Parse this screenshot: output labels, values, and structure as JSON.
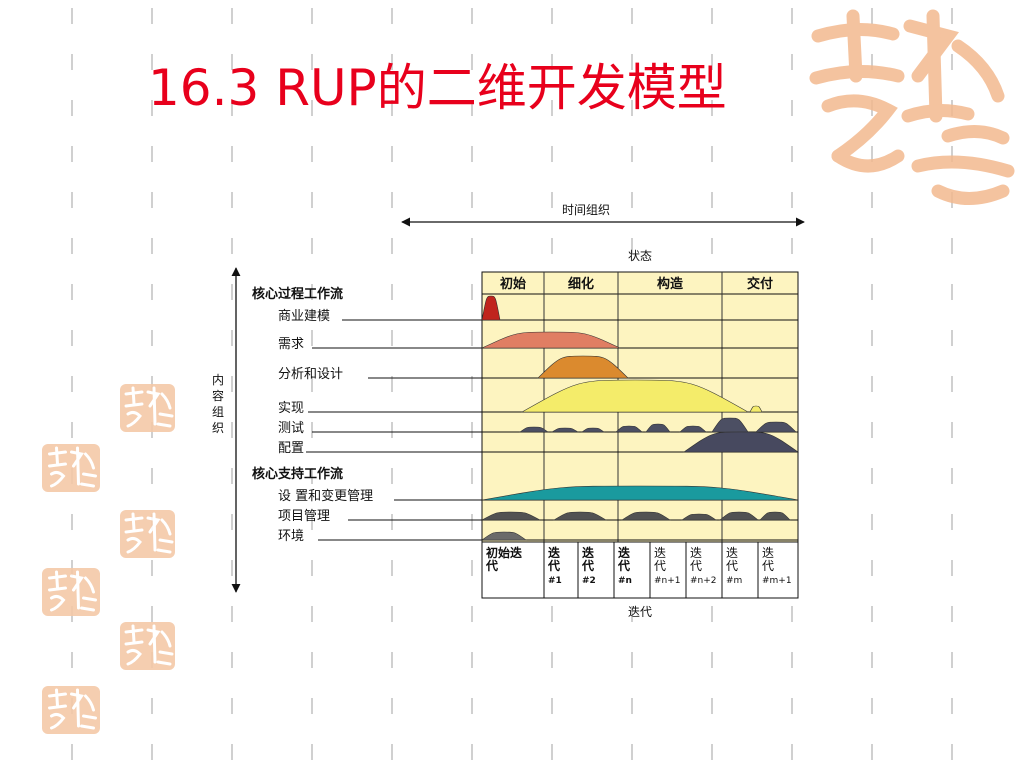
{
  "slide": {
    "title": "16.3  RUP的二维开发模型",
    "accent_color": "#e8001c",
    "logo_text": "吉祥如意"
  },
  "diagram": {
    "time_axis_label": "时间组织",
    "content_axis_label": "内容组织",
    "phase_header": "状态",
    "phases": [
      "初始",
      "细化",
      "构造",
      "交付"
    ],
    "core_process_heading": "核心过程工作流",
    "process_workflows": [
      {
        "label": "商业建模",
        "color": "#c0241d"
      },
      {
        "label": "需求",
        "color": "#e07e63"
      },
      {
        "label": "分析和设计",
        "color": "#db8a2e"
      },
      {
        "label": "实现",
        "color": "#f4ec6a"
      },
      {
        "label": "测试",
        "color": "#4c4f63"
      },
      {
        "label": "配置",
        "color": "#47495f"
      }
    ],
    "core_support_heading": "核心支持工作流",
    "support_workflows": [
      {
        "label": "设 置和变更管理",
        "color": "#1a9a9e"
      },
      {
        "label": "项目管理",
        "color": "#525252"
      },
      {
        "label": "环境",
        "color": "#6a6a6a"
      }
    ],
    "iteration_axis_label": "迭代",
    "iterations": [
      [
        "初始迭",
        "代"
      ],
      [
        "迭",
        "代",
        "#1"
      ],
      [
        "迭",
        "代",
        "#2"
      ],
      [
        "迭",
        "代",
        "#n"
      ],
      [
        "迭",
        "代",
        "#n+1"
      ],
      [
        "迭",
        "代",
        "#n+2"
      ],
      [
        "迭",
        "代",
        "#m"
      ],
      [
        "迭",
        "代",
        "#m+1"
      ]
    ],
    "panel_color": "#fdf4c0"
  }
}
